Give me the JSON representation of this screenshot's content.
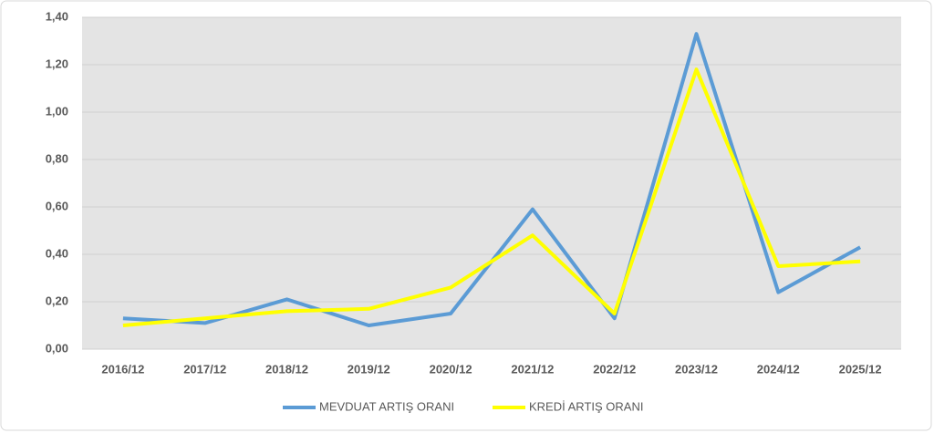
{
  "chart_data": {
    "type": "line",
    "categories": [
      "2016/12",
      "2017/12",
      "2018/12",
      "2019/12",
      "2020/12",
      "2021/12",
      "2022/12",
      "2023/12",
      "2024/12",
      "2025/12"
    ],
    "series": [
      {
        "name": "MEVDUAT ARTIŞ ORANI",
        "color": "#5b9bd5",
        "values": [
          0.13,
          0.11,
          0.21,
          0.1,
          0.15,
          0.59,
          0.13,
          1.33,
          0.24,
          0.43
        ]
      },
      {
        "name": "KREDİ ARTIŞ ORANI",
        "color": "#ffff00",
        "values": [
          0.1,
          0.13,
          0.16,
          0.17,
          0.26,
          0.48,
          0.15,
          1.18,
          0.35,
          0.37
        ]
      }
    ],
    "ylim": [
      0,
      1.4
    ],
    "yticks": [
      {
        "value": 0,
        "label": "0,00"
      },
      {
        "value": 0.2,
        "label": "0,20"
      },
      {
        "value": 0.4,
        "label": "0,40"
      },
      {
        "value": 0.6,
        "label": "0,60"
      },
      {
        "value": 0.8,
        "label": "0,80"
      },
      {
        "value": 1.0,
        "label": "1,00"
      },
      {
        "value": 1.2,
        "label": "1,20"
      },
      {
        "value": 1.4,
        "label": "1,40"
      }
    ],
    "grid": true,
    "legend": "bottom",
    "plot_background": "#e4e4e4"
  }
}
